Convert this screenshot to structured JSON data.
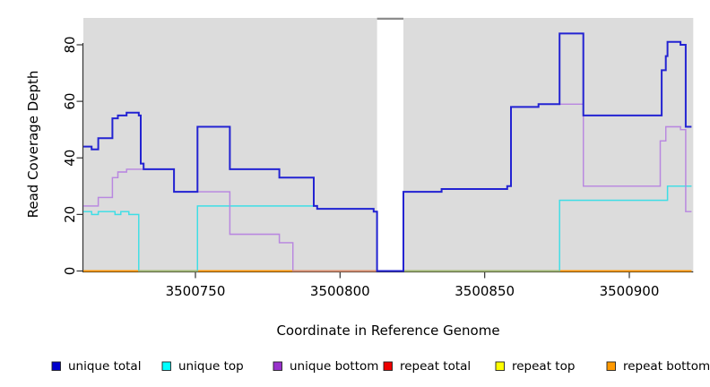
{
  "chart_data": {
    "type": "line",
    "subtype": "step-after-coverage-plot",
    "title": "",
    "xlabel": "Coordinate in Reference Genome",
    "ylabel": "Read Coverage Depth",
    "xlim": [
      3500711.3,
      3500922.0
    ],
    "ylim": [
      0,
      89.6
    ],
    "x_end": 3500921.5,
    "x_ticks": [
      3500750,
      3500800,
      3500850,
      3500900
    ],
    "x_tick_labels": [
      "3500750",
      "3500800",
      "3500850",
      "3500900"
    ],
    "y_ticks": [
      0,
      20,
      40,
      60,
      80
    ],
    "y_tick_labels": [
      "0",
      "20",
      "40",
      "60",
      "80"
    ],
    "grid": false,
    "plot_background": "#DCDCDC",
    "page_background": "#FFFFFF",
    "axis_color": "#333333",
    "gap_region": {
      "from": 3500812.8,
      "to": 3500821.9,
      "fill": "#FFFFFF",
      "cap_color": "#8C8C8C",
      "note": "white no-data band with dark top cap"
    },
    "legend_position": "bottom",
    "series": [
      {
        "name": "unique total",
        "color": "#2323D2",
        "legend_color": "#0000CD",
        "width": 2.0,
        "steps": [
          [
            3500711.3,
            44
          ],
          [
            3500714.1,
            43
          ],
          [
            3500716.4,
            47
          ],
          [
            3500721.3,
            54
          ],
          [
            3500723.2,
            55
          ],
          [
            3500726.2,
            56
          ],
          [
            3500730.4,
            55
          ],
          [
            3500731.1,
            38
          ],
          [
            3500732.1,
            36
          ],
          [
            3500742.6,
            28
          ],
          [
            3500750.7,
            51
          ],
          [
            3500761.9,
            36
          ],
          [
            3500779.0,
            33
          ],
          [
            3500790.9,
            23
          ],
          [
            3500792.1,
            22
          ],
          [
            3500811.6,
            21
          ],
          [
            3500812.8,
            0
          ],
          [
            3500821.9,
            28
          ],
          [
            3500835.1,
            29
          ],
          [
            3500857.8,
            30
          ],
          [
            3500859.1,
            58
          ],
          [
            3500868.6,
            59
          ],
          [
            3500875.9,
            84
          ],
          [
            3500884.1,
            55
          ],
          [
            3500911.2,
            71
          ],
          [
            3500912.6,
            76
          ],
          [
            3500913.2,
            81
          ],
          [
            3500917.7,
            80
          ],
          [
            3500919.5,
            51
          ]
        ]
      },
      {
        "name": "unique top",
        "color": "#3CDEE6",
        "legend_color": "#00FFFF",
        "width": 1.4,
        "steps": [
          [
            3500711.3,
            21
          ],
          [
            3500714.1,
            20
          ],
          [
            3500716.4,
            21
          ],
          [
            3500722.2,
            20
          ],
          [
            3500724.2,
            21
          ],
          [
            3500727.0,
            20
          ],
          [
            3500730.4,
            0
          ],
          [
            3500750.7,
            23
          ],
          [
            3500792.1,
            22
          ],
          [
            3500811.6,
            21
          ],
          [
            3500812.8,
            0
          ],
          [
            3500875.9,
            25
          ],
          [
            3500913.2,
            30
          ]
        ]
      },
      {
        "name": "unique bottom",
        "color": "#B988E0",
        "legend_color": "#9932CC",
        "width": 1.4,
        "steps": [
          [
            3500711.3,
            23
          ],
          [
            3500716.4,
            26
          ],
          [
            3500721.3,
            33
          ],
          [
            3500723.2,
            35
          ],
          [
            3500726.2,
            36
          ],
          [
            3500742.6,
            28
          ],
          [
            3500761.9,
            13
          ],
          [
            3500779.0,
            10
          ],
          [
            3500783.7,
            0
          ],
          [
            3500821.9,
            28
          ],
          [
            3500835.1,
            29
          ],
          [
            3500857.8,
            30
          ],
          [
            3500859.1,
            58
          ],
          [
            3500868.6,
            59
          ],
          [
            3500884.1,
            30
          ],
          [
            3500910.7,
            46
          ],
          [
            3500912.6,
            51
          ],
          [
            3500917.7,
            50
          ],
          [
            3500919.5,
            21
          ]
        ]
      },
      {
        "name": "repeat total",
        "color": "#E00000",
        "legend_color": "#EE0000",
        "width": 1.4,
        "steps": [
          [
            3500711.3,
            0
          ]
        ]
      },
      {
        "name": "repeat top",
        "color": "#FFFF00",
        "legend_color": "#FFFF00",
        "width": 1.4,
        "steps": [
          [
            3500711.3,
            0
          ]
        ]
      },
      {
        "name": "repeat bottom",
        "color": "#FF9100",
        "legend_color": "#FF9900",
        "width": 1.6,
        "steps": [
          [
            3500711.3,
            0
          ]
        ]
      }
    ]
  },
  "axes": {
    "x_title": "Coordinate in Reference Genome",
    "y_title": "Read Coverage Depth"
  },
  "legend": {
    "labels": [
      "unique total",
      "unique top",
      "unique bottom",
      "repeat total",
      "repeat top",
      "repeat bottom"
    ]
  }
}
